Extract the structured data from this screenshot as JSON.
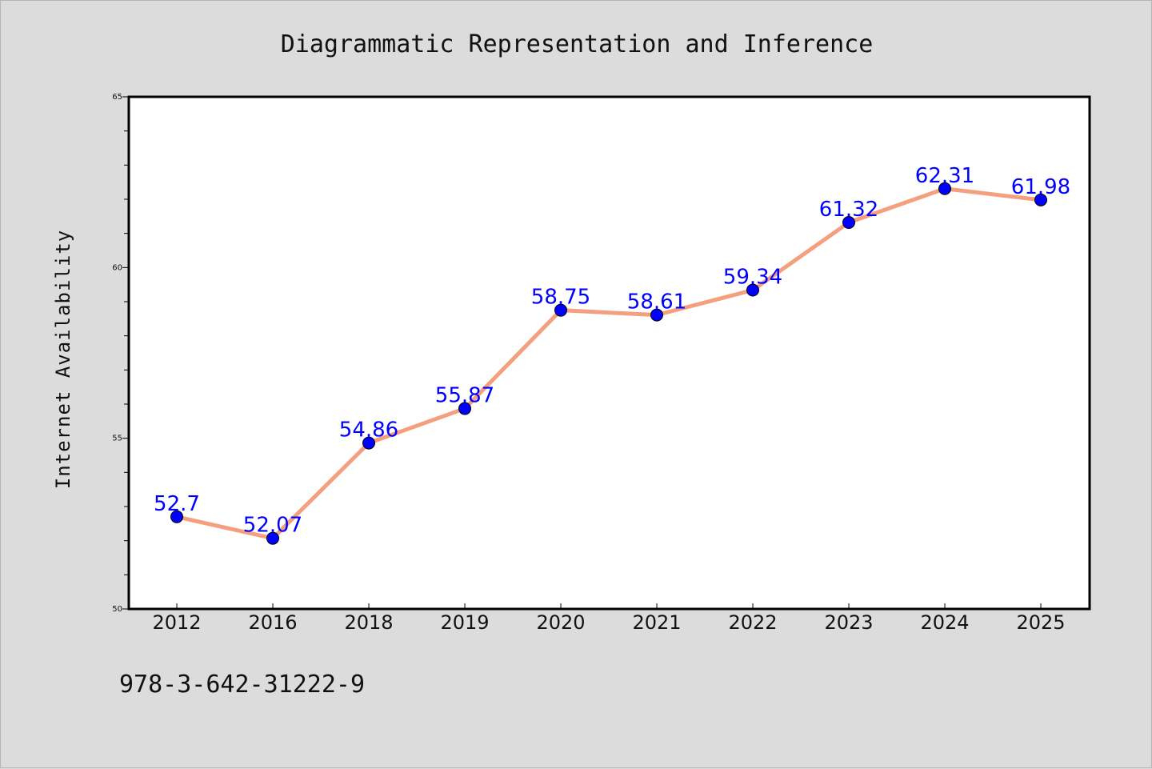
{
  "chart_data": {
    "type": "line",
    "title": "Diagrammatic Representation and Inference",
    "xlabel": "",
    "ylabel": "Internet Availability",
    "categories": [
      "2012",
      "2016",
      "2018",
      "2019",
      "2020",
      "2021",
      "2022",
      "2023",
      "2024",
      "2025"
    ],
    "values": [
      52.7,
      52.07,
      54.86,
      55.87,
      58.75,
      58.61,
      59.34,
      61.32,
      62.31,
      61.98
    ],
    "data_labels": [
      "52.7",
      "52.07",
      "54.86",
      "55.87",
      "58.75",
      "58.61",
      "59.34",
      "61.32",
      "62.31",
      "61.98"
    ],
    "ylim": [
      50,
      65
    ],
    "yticks": [
      "50",
      "55",
      "60",
      "65"
    ],
    "grid": false,
    "colors": {
      "line": "#f4a07f",
      "marker": "#0000ff",
      "label": "#0000ff"
    }
  },
  "footer_text": "978-3-642-31222-9"
}
